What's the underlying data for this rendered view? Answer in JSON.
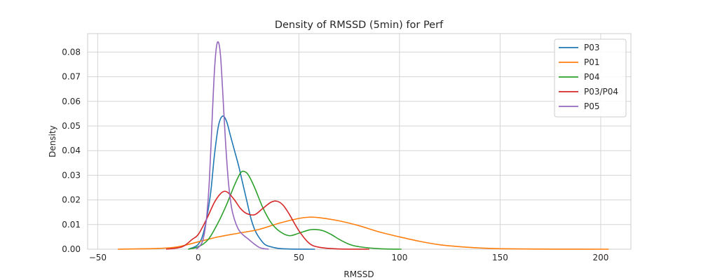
{
  "chart_data": {
    "type": "line",
    "title": "Density of RMSSD (5min) for Perf",
    "xlabel": "RMSSD",
    "ylabel": "Density",
    "xlim": [
      -55,
      215
    ],
    "ylim": [
      0,
      0.0875
    ],
    "xticks": [
      -50,
      0,
      50,
      100,
      150,
      200
    ],
    "yticks": [
      0.0,
      0.01,
      0.02,
      0.03,
      0.04,
      0.05,
      0.06,
      0.07,
      0.08
    ],
    "xtick_labels": [
      "−50",
      "0",
      "50",
      "100",
      "150",
      "200"
    ],
    "ytick_labels": [
      "0.00",
      "0.01",
      "0.02",
      "0.03",
      "0.04",
      "0.05",
      "0.06",
      "0.07",
      "0.08"
    ],
    "grid": true,
    "legend_position": "top-right",
    "series": [
      {
        "name": "P03",
        "color": "#1f77b4",
        "x": [
          -5,
          0,
          3,
          6,
          8,
          10,
          12,
          14,
          16,
          18,
          20,
          22,
          24,
          26,
          28,
          30,
          33,
          36,
          40,
          45,
          50,
          58
        ],
        "y": [
          0.0,
          0.002,
          0.008,
          0.022,
          0.038,
          0.05,
          0.054,
          0.052,
          0.046,
          0.04,
          0.034,
          0.027,
          0.02,
          0.013,
          0.008,
          0.005,
          0.002,
          0.001,
          0.0003,
          0.0001,
          2e-05,
          0.0
        ]
      },
      {
        "name": "P01",
        "color": "#ff7f0e",
        "x": [
          -40,
          -20,
          -10,
          0,
          10,
          20,
          30,
          40,
          50,
          55,
          60,
          70,
          80,
          90,
          100,
          110,
          120,
          130,
          140,
          150,
          170,
          190,
          204
        ],
        "y": [
          0.0,
          0.0003,
          0.001,
          0.003,
          0.005,
          0.0065,
          0.008,
          0.0105,
          0.0125,
          0.013,
          0.0128,
          0.0115,
          0.0095,
          0.007,
          0.005,
          0.0032,
          0.0018,
          0.001,
          0.0005,
          0.0002,
          5e-05,
          1e-05,
          0.0
        ]
      },
      {
        "name": "P04",
        "color": "#2ca02c",
        "x": [
          -5,
          0,
          5,
          10,
          14,
          18,
          21,
          23,
          25,
          28,
          32,
          36,
          40,
          45,
          50,
          55,
          58,
          62,
          66,
          70,
          75,
          80,
          90,
          101
        ],
        "y": [
          0.0,
          0.001,
          0.004,
          0.011,
          0.018,
          0.026,
          0.031,
          0.0315,
          0.03,
          0.025,
          0.017,
          0.011,
          0.0075,
          0.0055,
          0.0065,
          0.0078,
          0.008,
          0.0075,
          0.006,
          0.004,
          0.002,
          0.001,
          0.0002,
          0.0
        ]
      },
      {
        "name": "P03/P04",
        "color": "#d62728",
        "x": [
          -16,
          -8,
          -3,
          0,
          4,
          8,
          11,
          13,
          15,
          18,
          21,
          24,
          28,
          32,
          36,
          39,
          42,
          45,
          50,
          55,
          60,
          70,
          85
        ],
        "y": [
          0.0,
          0.001,
          0.004,
          0.006,
          0.012,
          0.019,
          0.0225,
          0.0235,
          0.0228,
          0.02,
          0.0165,
          0.0145,
          0.014,
          0.0165,
          0.019,
          0.0195,
          0.018,
          0.0145,
          0.0075,
          0.0025,
          0.0008,
          0.0001,
          0.0
        ]
      },
      {
        "name": "P05",
        "color": "#9467bd",
        "x": [
          -1,
          2,
          4,
          5.5,
          7,
          8,
          9,
          10,
          11,
          12,
          13.5,
          15,
          16.5,
          18,
          20,
          22,
          25,
          28,
          31,
          35
        ],
        "y": [
          0.0,
          0.003,
          0.012,
          0.028,
          0.055,
          0.072,
          0.082,
          0.084,
          0.079,
          0.066,
          0.044,
          0.027,
          0.017,
          0.012,
          0.008,
          0.006,
          0.004,
          0.002,
          0.0005,
          0.0
        ]
      }
    ]
  }
}
